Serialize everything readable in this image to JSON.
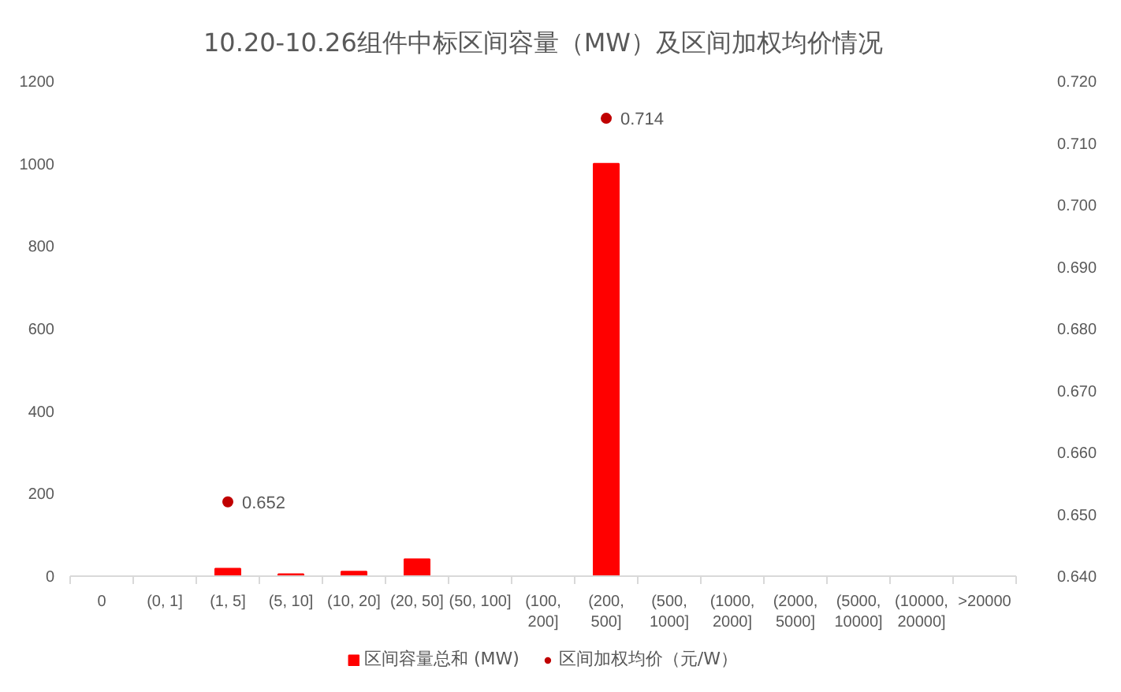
{
  "chart_data": {
    "type": "bar",
    "title": "10.20-10.26组件中标区间容量（MW）及区间加权均价情况",
    "categories": [
      "0",
      "(0, 1]",
      "(1, 5]",
      "(5, 10]",
      "(10, 20]",
      "(20, 50]",
      "(50, 100]",
      "(100, 200]",
      "(200, 500]",
      "(500, 1000]",
      "(1000, 2000]",
      "(2000, 5000]",
      "(5000, 10000]",
      "(10000, 20000]",
      ">20000"
    ],
    "series": [
      {
        "name": "区间容量总和 (MW)",
        "color": "#ff0000",
        "values": [
          0,
          0,
          18,
          5,
          11,
          41,
          0,
          0,
          1000,
          0,
          0,
          0,
          0,
          0,
          0
        ]
      },
      {
        "name": "区间加权均价（元/W）",
        "type": "scatter",
        "axis": "y2",
        "color": "#c00000",
        "values": [
          null,
          null,
          0.652,
          null,
          null,
          null,
          null,
          null,
          0.714,
          null,
          null,
          null,
          null,
          null,
          null
        ],
        "value_labels": [
          null,
          null,
          "0.652",
          null,
          null,
          null,
          null,
          null,
          "0.714",
          null,
          null,
          null,
          null,
          null,
          null
        ]
      }
    ],
    "ylim": [
      0,
      1200
    ],
    "yticks": [
      0,
      200,
      400,
      600,
      800,
      1000,
      1200
    ],
    "y2lim": [
      0.64,
      0.72
    ],
    "y2ticks": [
      {
        "value": 0.64,
        "label": "0.640"
      },
      {
        "value": 0.65,
        "label": "0.650"
      },
      {
        "value": 0.66,
        "label": "0.660"
      },
      {
        "value": 0.67,
        "label": "0.670"
      },
      {
        "value": 0.68,
        "label": "0.680"
      },
      {
        "value": 0.69,
        "label": "0.690"
      },
      {
        "value": 0.7,
        "label": "0.700"
      },
      {
        "value": 0.71,
        "label": "0.710"
      },
      {
        "value": 0.72,
        "label": "0.720"
      }
    ],
    "legend": "bottom",
    "grid": false,
    "marker": "circle"
  }
}
